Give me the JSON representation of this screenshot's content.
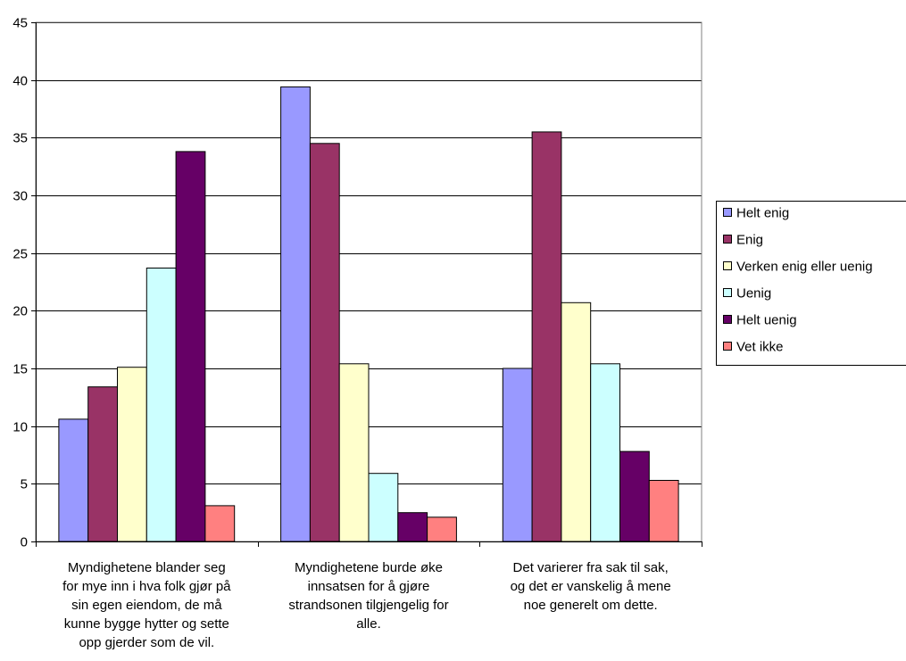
{
  "chart_data": {
    "type": "bar",
    "title": "",
    "xlabel": "",
    "ylabel": "",
    "ylim": [
      0,
      45
    ],
    "yticks": [
      0,
      5,
      10,
      15,
      20,
      25,
      30,
      35,
      40,
      45
    ],
    "grid": true,
    "legend_position": "right",
    "categories": [
      [
        "Myndighetene blander seg",
        "for mye inn i hva folk gjør på",
        "sin egen eiendom, de må",
        "kunne bygge hytter og sette",
        "opp gjerder som de vil."
      ],
      [
        "Myndighetene burde øke",
        "innsatsen for å gjøre",
        "strandsonen tilgjengelig for",
        "alle."
      ],
      [
        "Det varierer fra sak til sak,",
        "og det er vanskelig å mene",
        "noe generelt om dette."
      ]
    ],
    "series": [
      {
        "name": "Helt enig",
        "color": "#9999ff",
        "values": [
          10.6,
          39.4,
          15.0
        ]
      },
      {
        "name": "Enig",
        "color": "#993366",
        "values": [
          13.4,
          34.5,
          35.5
        ]
      },
      {
        "name": "Verken enig eller uenig",
        "color": "#ffffcc",
        "values": [
          15.1,
          15.4,
          20.7
        ]
      },
      {
        "name": "Uenig",
        "color": "#ccffff",
        "values": [
          23.7,
          5.9,
          15.4
        ]
      },
      {
        "name": "Helt uenig",
        "color": "#660066",
        "values": [
          33.8,
          2.5,
          7.8
        ]
      },
      {
        "name": "Vet ikke",
        "color": "#ff8080",
        "values": [
          3.1,
          2.1,
          5.3
        ]
      }
    ]
  }
}
